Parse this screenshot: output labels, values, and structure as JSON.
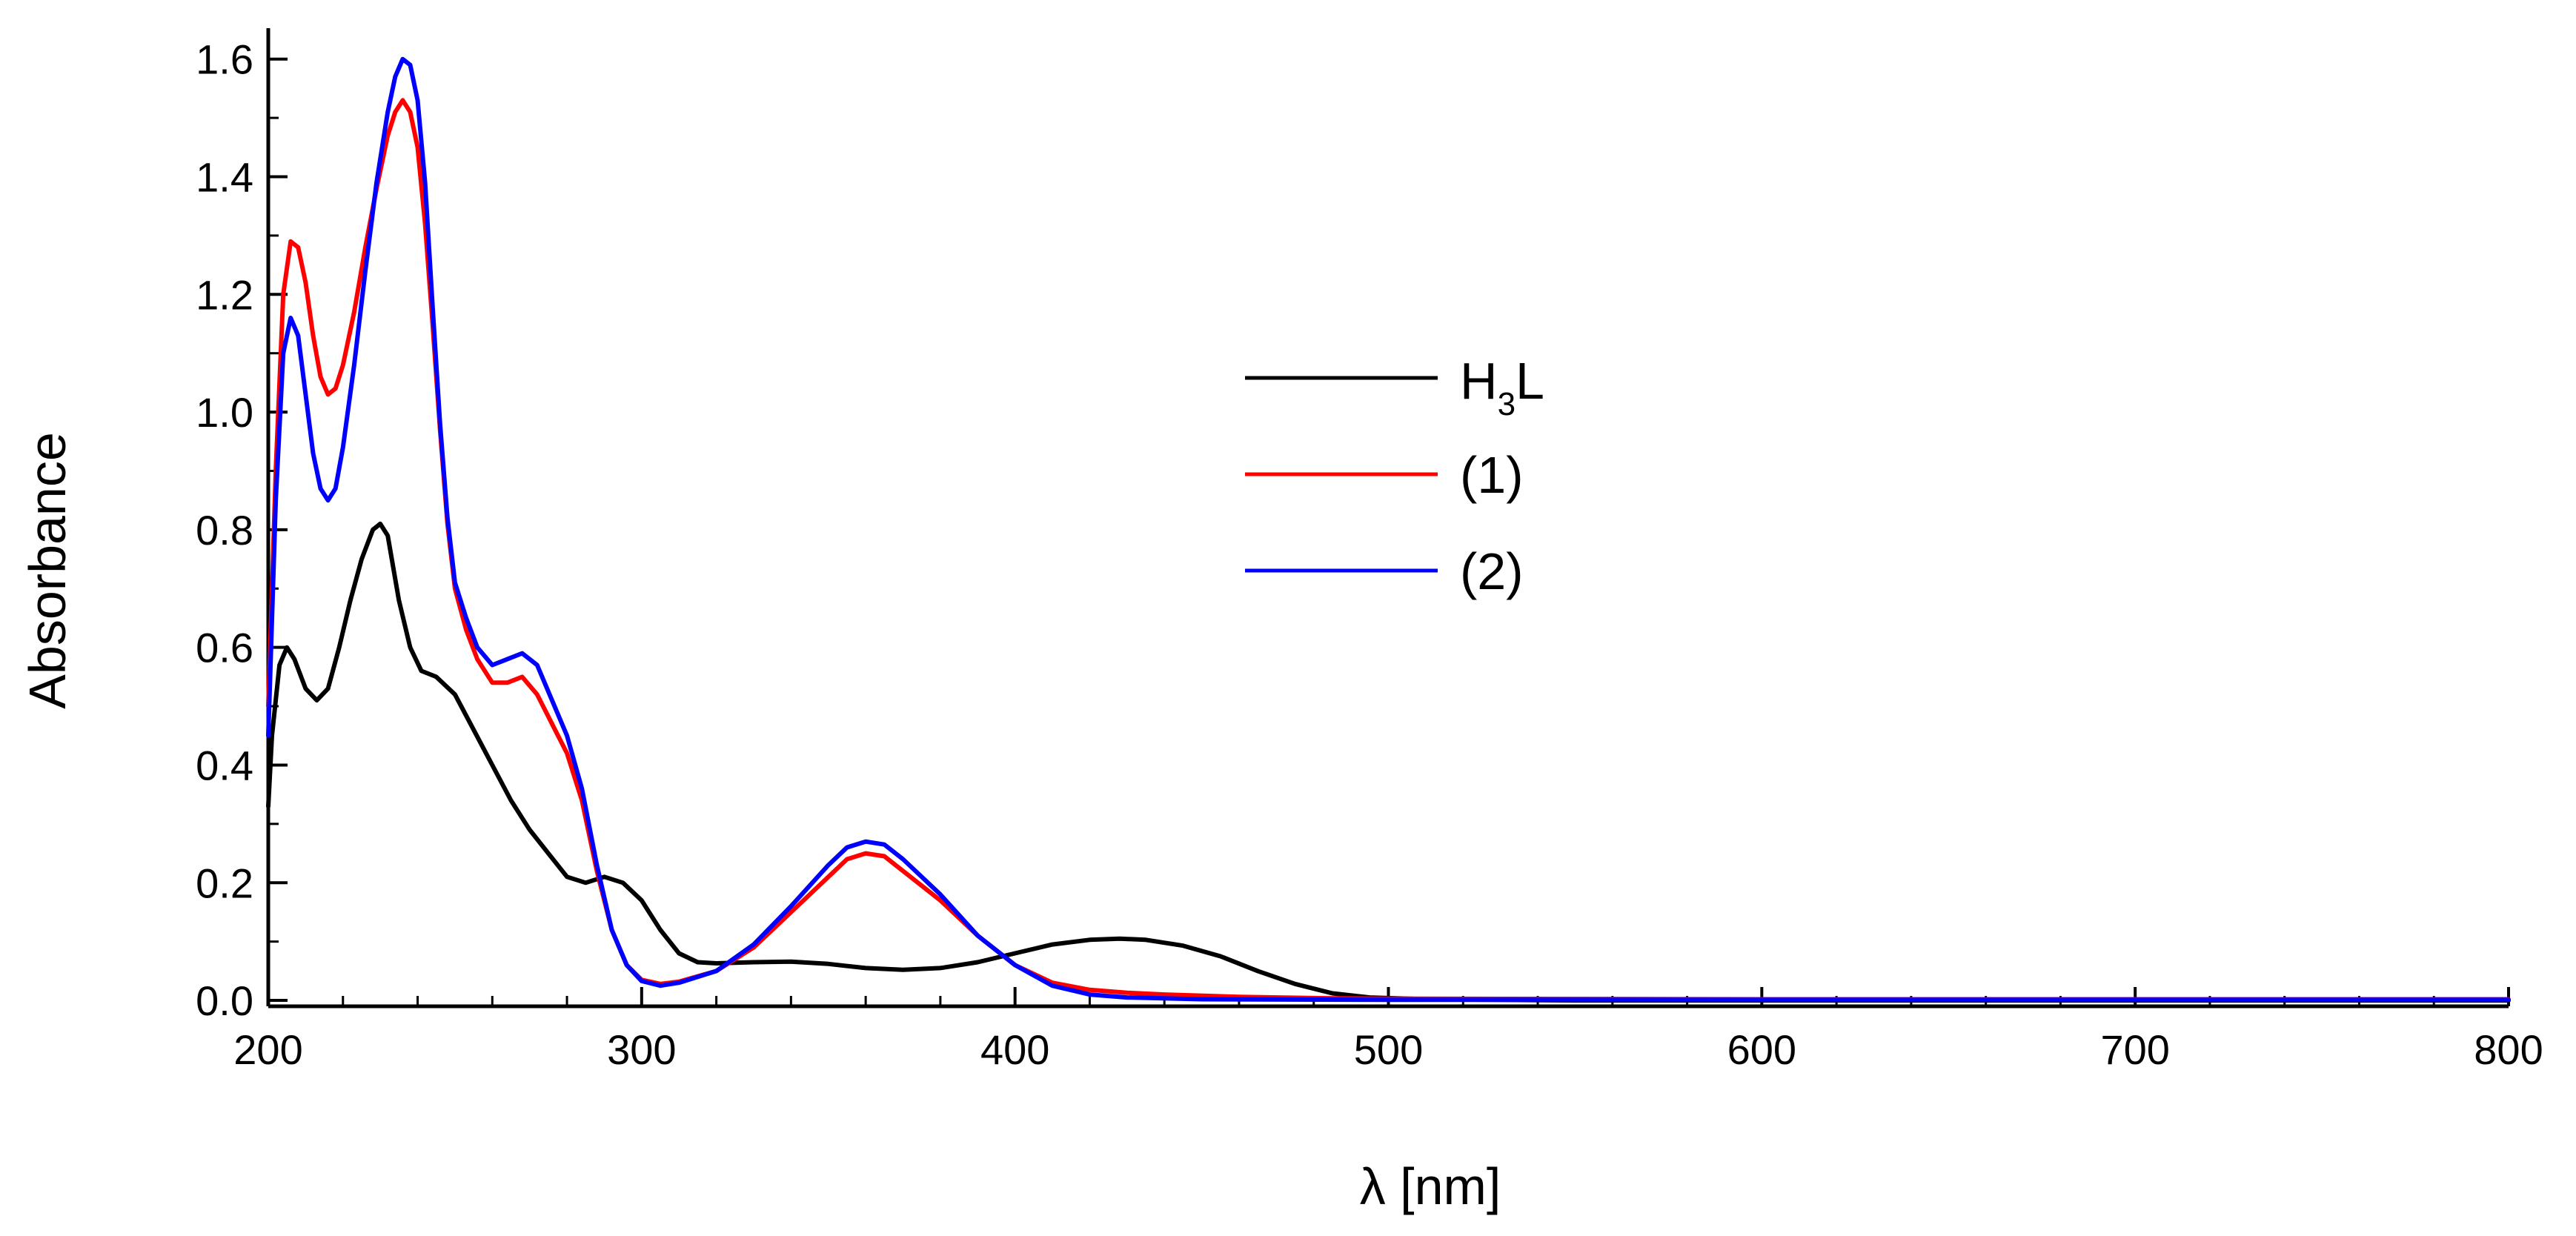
{
  "chart_data": {
    "type": "line",
    "title": "",
    "xlabel": "λ [nm]",
    "ylabel": "Absorbance",
    "xlim": [
      200,
      800
    ],
    "ylim": [
      -0.01,
      1.65
    ],
    "x_ticks": [
      200,
      300,
      400,
      500,
      600,
      700,
      800
    ],
    "x_tick_labels": [
      "200",
      "300",
      "400",
      "500",
      "600",
      "700",
      "800"
    ],
    "y_ticks": [
      0.0,
      0.2,
      0.4,
      0.6,
      0.8,
      1.0,
      1.2,
      1.4,
      1.6
    ],
    "y_tick_labels": [
      "0.0",
      "0.2",
      "0.4",
      "0.6",
      "0.8",
      "1.0",
      "1.2",
      "1.4",
      "1.6"
    ],
    "grid": false,
    "legend_position": "center",
    "legend": {
      "h3l": {
        "main": "H",
        "sub": "3",
        "tail": "L"
      },
      "s1": "(1)",
      "s2": "(2)"
    },
    "series": [
      {
        "color": "#000000",
        "points": [
          [
            200,
            0.33
          ],
          [
            201,
            0.45
          ],
          [
            203,
            0.57
          ],
          [
            205,
            0.6
          ],
          [
            207,
            0.58
          ],
          [
            210,
            0.53
          ],
          [
            213,
            0.51
          ],
          [
            216,
            0.53
          ],
          [
            219,
            0.6
          ],
          [
            222,
            0.68
          ],
          [
            225,
            0.75
          ],
          [
            228,
            0.8
          ],
          [
            230,
            0.81
          ],
          [
            232,
            0.79
          ],
          [
            235,
            0.68
          ],
          [
            238,
            0.6
          ],
          [
            241,
            0.56
          ],
          [
            245,
            0.55
          ],
          [
            250,
            0.52
          ],
          [
            255,
            0.46
          ],
          [
            260,
            0.4
          ],
          [
            265,
            0.34
          ],
          [
            270,
            0.29
          ],
          [
            275,
            0.25
          ],
          [
            280,
            0.21
          ],
          [
            285,
            0.2
          ],
          [
            290,
            0.21
          ],
          [
            295,
            0.2
          ],
          [
            300,
            0.17
          ],
          [
            305,
            0.12
          ],
          [
            310,
            0.08
          ],
          [
            315,
            0.065
          ],
          [
            320,
            0.063
          ],
          [
            330,
            0.065
          ],
          [
            340,
            0.066
          ],
          [
            350,
            0.062
          ],
          [
            360,
            0.055
          ],
          [
            370,
            0.052
          ],
          [
            380,
            0.055
          ],
          [
            390,
            0.065
          ],
          [
            400,
            0.08
          ],
          [
            410,
            0.095
          ],
          [
            420,
            0.103
          ],
          [
            428,
            0.105
          ],
          [
            435,
            0.103
          ],
          [
            445,
            0.093
          ],
          [
            455,
            0.075
          ],
          [
            465,
            0.05
          ],
          [
            475,
            0.028
          ],
          [
            485,
            0.012
          ],
          [
            495,
            0.005
          ],
          [
            510,
            0.002
          ],
          [
            550,
            0.0
          ],
          [
            600,
            0.0
          ],
          [
            700,
            0.0
          ],
          [
            800,
            0.0
          ]
        ]
      },
      {
        "color": "#ff0000",
        "points": [
          [
            200,
            0.5
          ],
          [
            202,
            0.9
          ],
          [
            204,
            1.2
          ],
          [
            206,
            1.29
          ],
          [
            208,
            1.28
          ],
          [
            210,
            1.22
          ],
          [
            212,
            1.13
          ],
          [
            214,
            1.06
          ],
          [
            216,
            1.03
          ],
          [
            218,
            1.04
          ],
          [
            220,
            1.08
          ],
          [
            223,
            1.17
          ],
          [
            226,
            1.28
          ],
          [
            229,
            1.38
          ],
          [
            232,
            1.47
          ],
          [
            234,
            1.51
          ],
          [
            236,
            1.53
          ],
          [
            238,
            1.51
          ],
          [
            240,
            1.45
          ],
          [
            242,
            1.32
          ],
          [
            244,
            1.15
          ],
          [
            246,
            0.97
          ],
          [
            248,
            0.81
          ],
          [
            250,
            0.7
          ],
          [
            253,
            0.63
          ],
          [
            256,
            0.58
          ],
          [
            260,
            0.54
          ],
          [
            264,
            0.54
          ],
          [
            268,
            0.55
          ],
          [
            272,
            0.52
          ],
          [
            276,
            0.47
          ],
          [
            280,
            0.42
          ],
          [
            284,
            0.34
          ],
          [
            288,
            0.22
          ],
          [
            292,
            0.12
          ],
          [
            296,
            0.06
          ],
          [
            300,
            0.035
          ],
          [
            305,
            0.028
          ],
          [
            310,
            0.032
          ],
          [
            320,
            0.05
          ],
          [
            330,
            0.09
          ],
          [
            340,
            0.15
          ],
          [
            350,
            0.21
          ],
          [
            355,
            0.24
          ],
          [
            360,
            0.25
          ],
          [
            365,
            0.245
          ],
          [
            370,
            0.22
          ],
          [
            380,
            0.17
          ],
          [
            390,
            0.11
          ],
          [
            400,
            0.06
          ],
          [
            410,
            0.03
          ],
          [
            420,
            0.018
          ],
          [
            430,
            0.013
          ],
          [
            440,
            0.01
          ],
          [
            460,
            0.006
          ],
          [
            480,
            0.004
          ],
          [
            500,
            0.003
          ],
          [
            600,
            0.002
          ],
          [
            700,
            0.002
          ],
          [
            800,
            0.002
          ]
        ]
      },
      {
        "color": "#0000ff",
        "points": [
          [
            200,
            0.45
          ],
          [
            202,
            0.85
          ],
          [
            204,
            1.1
          ],
          [
            206,
            1.16
          ],
          [
            208,
            1.13
          ],
          [
            210,
            1.03
          ],
          [
            212,
            0.93
          ],
          [
            214,
            0.87
          ],
          [
            216,
            0.85
          ],
          [
            218,
            0.87
          ],
          [
            220,
            0.94
          ],
          [
            223,
            1.08
          ],
          [
            226,
            1.24
          ],
          [
            229,
            1.39
          ],
          [
            232,
            1.51
          ],
          [
            234,
            1.57
          ],
          [
            236,
            1.6
          ],
          [
            238,
            1.59
          ],
          [
            240,
            1.53
          ],
          [
            242,
            1.39
          ],
          [
            244,
            1.18
          ],
          [
            246,
            0.98
          ],
          [
            248,
            0.82
          ],
          [
            250,
            0.71
          ],
          [
            253,
            0.65
          ],
          [
            256,
            0.6
          ],
          [
            260,
            0.57
          ],
          [
            264,
            0.58
          ],
          [
            268,
            0.59
          ],
          [
            272,
            0.57
          ],
          [
            276,
            0.51
          ],
          [
            280,
            0.45
          ],
          [
            284,
            0.36
          ],
          [
            288,
            0.23
          ],
          [
            292,
            0.12
          ],
          [
            296,
            0.06
          ],
          [
            300,
            0.033
          ],
          [
            305,
            0.025
          ],
          [
            310,
            0.03
          ],
          [
            320,
            0.05
          ],
          [
            330,
            0.095
          ],
          [
            340,
            0.16
          ],
          [
            350,
            0.23
          ],
          [
            355,
            0.26
          ],
          [
            360,
            0.27
          ],
          [
            365,
            0.265
          ],
          [
            370,
            0.24
          ],
          [
            380,
            0.18
          ],
          [
            390,
            0.11
          ],
          [
            400,
            0.06
          ],
          [
            410,
            0.025
          ],
          [
            420,
            0.01
          ],
          [
            430,
            0.005
          ],
          [
            450,
            0.002
          ],
          [
            500,
            0.001
          ],
          [
            600,
            0.001
          ],
          [
            700,
            0.001
          ],
          [
            800,
            0.001
          ]
        ]
      }
    ]
  }
}
